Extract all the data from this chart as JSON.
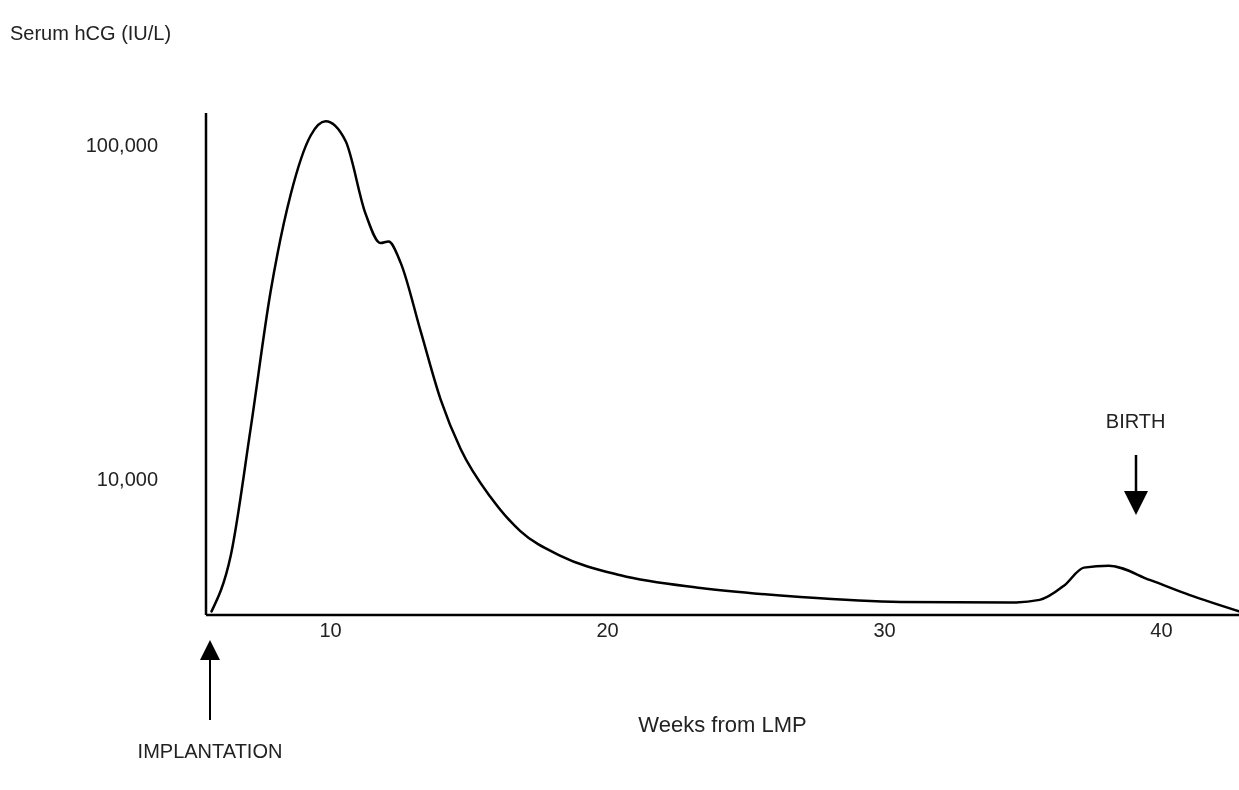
{
  "chart_data": {
    "type": "line",
    "ylabel": "Serum hCG (IU/L)",
    "xlabel": "Weeks from LMP",
    "log": "y",
    "xlim": [
      5.5,
      42.8
    ],
    "xticks": [
      10,
      20,
      30,
      40
    ],
    "ylim": [
      3900,
      125000
    ],
    "yticks": [
      {
        "value": 10000,
        "label": "10,000"
      },
      {
        "value": 100000,
        "label": "100,000"
      }
    ],
    "marker": "none",
    "line_style": "solid",
    "series": [
      {
        "color": "#000000",
        "x": [
          5.7,
          6.39,
          7.11,
          7.83,
          8.56,
          9.28,
          9.82,
          10.54,
          11.26,
          11.8,
          12.09,
          12.53,
          13.25,
          13.97,
          14.69,
          15.78,
          16.86,
          18.3,
          20.47,
          23.36,
          26.97,
          30.58,
          34.55,
          35.6,
          36.5,
          37.2,
          38.1,
          39.6,
          41.0,
          42.8
        ],
        "values": [
          4000,
          5860,
          14100,
          36300,
          71300,
          107000,
          118000,
          103000,
          62400,
          50900,
          51500,
          44400,
          27700,
          17300,
          12300,
          8790,
          6950,
          5870,
          5130,
          4700,
          4420,
          4270,
          4250,
          4330,
          4790,
          5410,
          5480,
          4960,
          4480,
          4000
        ]
      }
    ],
    "annotations": [
      "IMPLANTATION",
      "BIRTH"
    ]
  }
}
